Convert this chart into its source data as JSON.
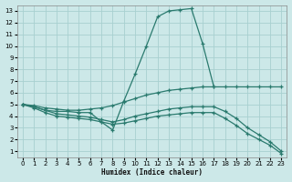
{
  "xlabel": "Humidex (Indice chaleur)",
  "bg_color": "#cce8e8",
  "grid_color": "#a8d0d0",
  "line_color": "#2a7a6e",
  "xlim_min": -0.5,
  "xlim_max": 23.5,
  "ylim_min": 0.5,
  "ylim_max": 13.5,
  "xticks": [
    0,
    1,
    2,
    3,
    4,
    5,
    6,
    7,
    8,
    9,
    10,
    11,
    12,
    13,
    14,
    15,
    16,
    17,
    18,
    19,
    20,
    21,
    22,
    23
  ],
  "yticks": [
    1,
    2,
    3,
    4,
    5,
    6,
    7,
    8,
    9,
    10,
    11,
    12,
    13
  ],
  "curve1_x": [
    0,
    1,
    2,
    3,
    4,
    5,
    6,
    7,
    8,
    9,
    10,
    11,
    12,
    13,
    14,
    15,
    16,
    17
  ],
  "curve1_y": [
    5.0,
    4.8,
    4.5,
    4.4,
    4.4,
    4.3,
    4.3,
    3.5,
    2.8,
    5.3,
    7.6,
    10.0,
    12.5,
    13.0,
    13.1,
    13.2,
    10.2,
    6.5
  ],
  "curve2_x": [
    0,
    1,
    2,
    3,
    4,
    5,
    6,
    7,
    8,
    9,
    10,
    11,
    12,
    13,
    14,
    15,
    16,
    17,
    18,
    19,
    20,
    21,
    22,
    23
  ],
  "curve2_y": [
    5.0,
    4.9,
    4.7,
    4.6,
    4.5,
    4.5,
    4.6,
    4.7,
    4.9,
    5.2,
    5.5,
    5.8,
    6.0,
    6.2,
    6.3,
    6.4,
    6.5,
    6.5,
    6.5,
    6.5,
    6.5,
    6.5,
    6.5,
    6.5
  ],
  "curve3_x": [
    0,
    1,
    2,
    3,
    4,
    5,
    6,
    7,
    8,
    9,
    10,
    11,
    12,
    13,
    14,
    15,
    16,
    17,
    18,
    19,
    20,
    21,
    22,
    23
  ],
  "curve3_y": [
    5.0,
    4.8,
    4.5,
    4.2,
    4.1,
    4.0,
    3.9,
    3.7,
    3.5,
    3.7,
    4.0,
    4.2,
    4.4,
    4.6,
    4.7,
    4.8,
    4.8,
    4.8,
    4.4,
    3.8,
    3.0,
    2.4,
    1.8,
    1.0
  ],
  "curve4_x": [
    0,
    1,
    2,
    3,
    4,
    5,
    6,
    7,
    8,
    9,
    10,
    11,
    12,
    13,
    14,
    15,
    16,
    17,
    18,
    19,
    20,
    21,
    22,
    23
  ],
  "curve4_y": [
    5.0,
    4.7,
    4.3,
    4.0,
    3.9,
    3.8,
    3.7,
    3.5,
    3.3,
    3.4,
    3.6,
    3.8,
    4.0,
    4.1,
    4.2,
    4.3,
    4.3,
    4.3,
    3.8,
    3.2,
    2.5,
    2.0,
    1.5,
    0.8
  ]
}
